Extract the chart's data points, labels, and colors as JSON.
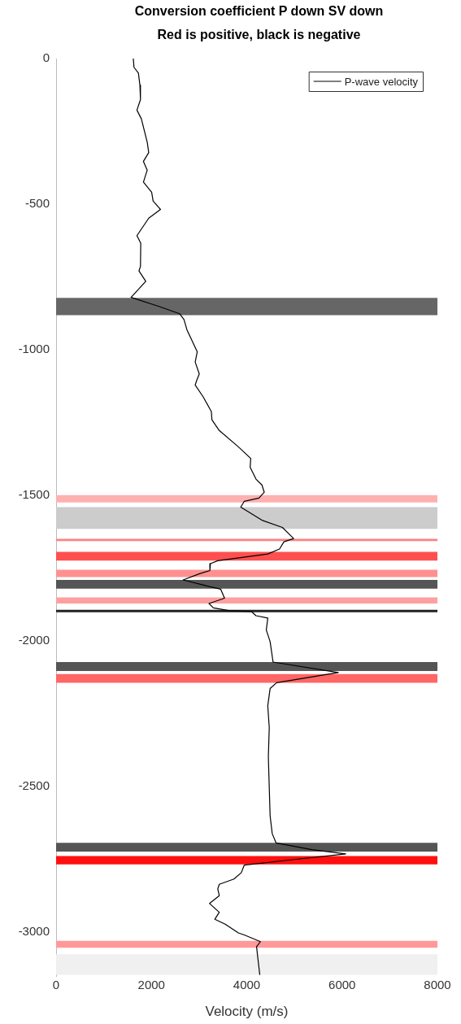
{
  "chart_data": {
    "type": "line",
    "title": "Conversion coefficient P down SV down",
    "subtitle": "Red is positive, black is negative",
    "xlabel": "Velocity (m/s)",
    "xlim": [
      0,
      8000
    ],
    "xticks": [
      0,
      2000,
      4000,
      6000,
      8000
    ],
    "ylim": [
      -3150,
      0
    ],
    "yticks": [
      0,
      -500,
      -1000,
      -1500,
      -2000,
      -2500,
      -3000
    ],
    "grid": false,
    "legend": "top right",
    "marker": "none",
    "line_style": "solid",
    "series": [
      {
        "name": "P-wave velocity",
        "color": "#000000",
        "x": [
          1620,
          1634,
          1727,
          1758,
          1770,
          1696,
          1789,
          1912,
          1943,
          1832,
          1912,
          1832,
          2005,
          2035,
          2190,
          1943,
          1696,
          1776,
          1770,
          1739,
          1881,
          1573,
          2159,
          2591,
          2683,
          2745,
          2961,
          2918,
          3004,
          2948,
          2918,
          3084,
          3257,
          3269,
          3423,
          3824,
          4083,
          4071,
          4194,
          4318,
          4367,
          4256,
          3948,
          3874,
          4318,
          4749,
          4984,
          4780,
          4687,
          4441,
          3392,
          3238,
          3226,
          3022,
          2665,
          3146,
          3454,
          3534,
          3207,
          3300,
          3639,
          4102,
          4194,
          4441,
          4410,
          4490,
          4552,
          5921,
          4626,
          4490,
          4441,
          4472,
          4453,
          4490,
          4534,
          4614,
          5366,
          6076,
          4996,
          3948,
          3886,
          3732,
          3423,
          3392,
          3423,
          3220,
          3423,
          3331,
          3547,
          3824,
          3948,
          4287,
          4206,
          4225,
          4274
        ],
        "values": [
          0,
          -30,
          -50,
          -91,
          -141,
          -177,
          -207,
          -287,
          -323,
          -353,
          -383,
          -424,
          -459,
          -489,
          -518,
          -548,
          -608,
          -634,
          -714,
          -729,
          -765,
          -820,
          -851,
          -876,
          -896,
          -931,
          -1007,
          -1042,
          -1083,
          -1106,
          -1121,
          -1161,
          -1212,
          -1240,
          -1277,
          -1333,
          -1373,
          -1403,
          -1444,
          -1464,
          -1489,
          -1509,
          -1520,
          -1540,
          -1585,
          -1610,
          -1648,
          -1659,
          -1684,
          -1701,
          -1724,
          -1734,
          -1758,
          -1768,
          -1790,
          -1810,
          -1822,
          -1853,
          -1871,
          -1886,
          -1896,
          -1899,
          -1913,
          -1921,
          -1962,
          -2002,
          -2072,
          -2108,
          -2143,
          -2163,
          -2222,
          -2297,
          -2398,
          -2600,
          -2661,
          -2693,
          -2716,
          -2731,
          -2750,
          -2769,
          -2795,
          -2817,
          -2835,
          -2851,
          -2874,
          -2901,
          -2931,
          -2955,
          -2972,
          -3002,
          -3009,
          -3032,
          -3049,
          -3078,
          -3146
        ]
      }
    ],
    "bands": [
      {
        "axis": "y",
        "from": -822,
        "to": -881,
        "color": "#666666"
      },
      {
        "axis": "y",
        "from": -1499,
        "to": -1524,
        "color": "#ffb0b0"
      },
      {
        "axis": "y",
        "from": -1540,
        "to": -1615,
        "color": "#cccccc"
      },
      {
        "axis": "y",
        "from": -1649,
        "to": -1657,
        "color": "#ff8080"
      },
      {
        "axis": "y",
        "from": -1694,
        "to": -1724,
        "color": "#ff5050"
      },
      {
        "axis": "y",
        "from": -1755,
        "to": -1780,
        "color": "#ff9090"
      },
      {
        "axis": "y",
        "from": -1790,
        "to": -1820,
        "color": "#555555"
      },
      {
        "axis": "y",
        "from": -1850,
        "to": -1871,
        "color": "#ffa0a0"
      },
      {
        "axis": "y",
        "from": -1893,
        "to": -1901,
        "color": "#222222"
      },
      {
        "axis": "y",
        "from": -2072,
        "to": -2103,
        "color": "#555555"
      },
      {
        "axis": "y",
        "from": -2113,
        "to": -2143,
        "color": "#ff6666"
      },
      {
        "axis": "y",
        "from": -2693,
        "to": -2723,
        "color": "#555555"
      },
      {
        "axis": "y",
        "from": -2738,
        "to": -2767,
        "color": "#ff1010"
      },
      {
        "axis": "y",
        "from": -3029,
        "to": -3053,
        "color": "#ff9999"
      },
      {
        "axis": "y",
        "from": -3075,
        "to": -3146,
        "color": "#f0f0f0"
      }
    ]
  }
}
